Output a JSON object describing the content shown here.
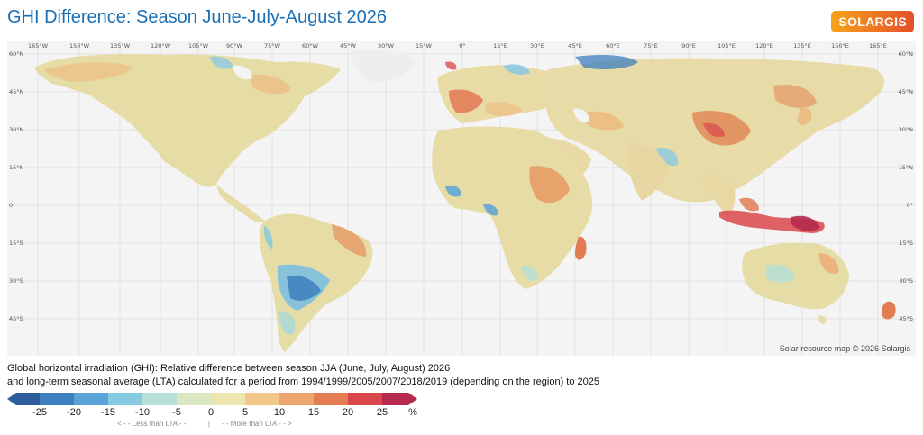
{
  "title": "GHI Difference: Season June-July-August 2026",
  "logo_text": "SOLARGIS",
  "longitude_labels": [
    "165°W",
    "150°W",
    "135°W",
    "120°W",
    "105°W",
    "90°W",
    "75°W",
    "60°W",
    "45°W",
    "30°W",
    "15°W",
    "0°",
    "15°E",
    "30°E",
    "45°E",
    "60°E",
    "75°E",
    "90°E",
    "105°E",
    "120°E",
    "135°E",
    "150°E",
    "165°E"
  ],
  "latitude_labels": [
    "60°N",
    "45°N",
    "30°N",
    "15°N",
    "0°",
    "15°S",
    "30°S",
    "45°S"
  ],
  "credit": "Solar resource map © 2026 Solargis",
  "description_line1": "Global horizontal irradiation (GHI): Relative difference between season JJA (June, July, August) 2026",
  "description_line2": "and long-term seasonal average (LTA) calculated for a period from 1994/1999/2005/2007/2018/2019 (depending on the region) to 2025",
  "legend": {
    "colors": [
      "#2d5d9b",
      "#3d7fbf",
      "#5aa3d6",
      "#86c9e3",
      "#b7dfd5",
      "#d9e7c2",
      "#ede5b0",
      "#f1c889",
      "#eda670",
      "#e37c53",
      "#d9474c",
      "#b52a4e"
    ],
    "tick_labels": [
      "-25",
      "-20",
      "-15",
      "-10",
      "-5",
      "0",
      "5",
      "10",
      "15",
      "20",
      "25",
      "%"
    ],
    "less_label": "< - -  Less than LTA  - -",
    "divider": "|",
    "more_label": "- -  More than LTA  - - >"
  }
}
